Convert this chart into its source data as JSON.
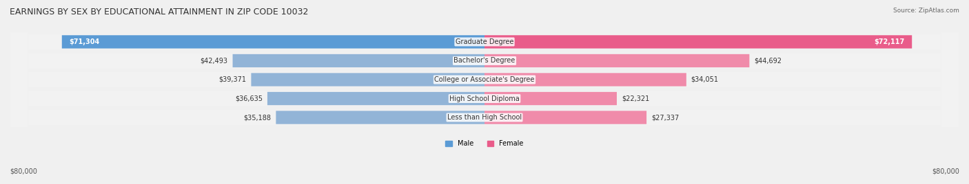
{
  "title": "EARNINGS BY SEX BY EDUCATIONAL ATTAINMENT IN ZIP CODE 10032",
  "source": "Source: ZipAtlas.com",
  "categories": [
    "Less than High School",
    "High School Diploma",
    "College or Associate's Degree",
    "Bachelor's Degree",
    "Graduate Degree"
  ],
  "male_values": [
    35188,
    36635,
    39371,
    42493,
    71304
  ],
  "female_values": [
    27337,
    22321,
    34051,
    44692,
    72117
  ],
  "male_labels": [
    "$35,188",
    "$36,635",
    "$39,371",
    "$42,493",
    "$71,304"
  ],
  "female_labels": [
    "$27,337",
    "$22,321",
    "$34,051",
    "$44,692",
    "$72,117"
  ],
  "axis_label_left": "$80,000",
  "axis_label_right": "$80,000",
  "max_value": 80000,
  "male_color": "#92b4d7",
  "female_color": "#f08baa",
  "male_color_last": "#5b9bd5",
  "female_color_last": "#e95c8a",
  "background_color": "#f0f0f0",
  "row_bg_light": "#f7f7f7",
  "row_bg_dark": "#e8e8e8",
  "title_fontsize": 9,
  "label_fontsize": 7,
  "category_fontsize": 7
}
